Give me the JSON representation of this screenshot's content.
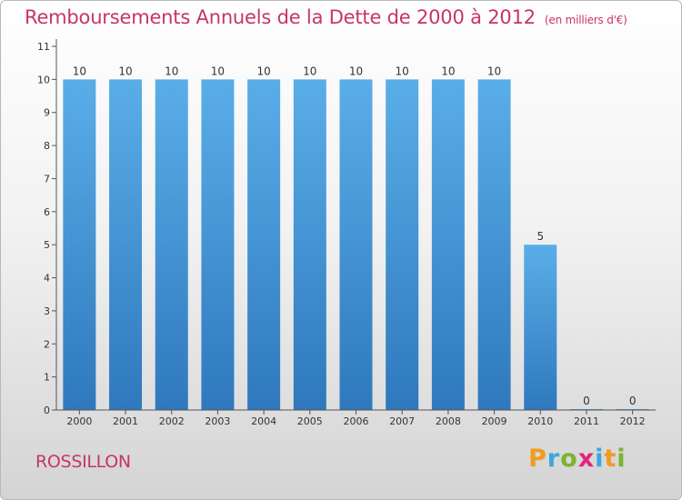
{
  "header": {
    "title": "Remboursements Annuels de la Dette de 2000 à 2012",
    "unit": "(en milliers d'€)"
  },
  "footer": {
    "commune": "ROSSILLON",
    "logo": {
      "letters": [
        "P",
        "r",
        "o",
        "x",
        "i",
        "t",
        "i"
      ]
    }
  },
  "colors": {
    "title": "#c8336d",
    "bar_top": "#5aaee8",
    "bar_bottom": "#2f78bd",
    "logo": [
      "#f29b1f",
      "#3aa7dd",
      "#7ab52e",
      "#e2257a",
      "#3aa7dd",
      "#f29b1f",
      "#7ab52e"
    ]
  },
  "chart_data": {
    "type": "bar",
    "title": "Remboursements Annuels de la Dette de 2000 à 2012",
    "subtitle": "(en milliers d'€)",
    "xlabel": "",
    "ylabel": "",
    "categories": [
      "2000",
      "2001",
      "2002",
      "2003",
      "2004",
      "2005",
      "2006",
      "2007",
      "2008",
      "2009",
      "2010",
      "2011",
      "2012"
    ],
    "values": [
      10,
      10,
      10,
      10,
      10,
      10,
      10,
      10,
      10,
      10,
      5,
      0,
      0
    ],
    "data_labels": [
      "10",
      "10",
      "10",
      "10",
      "10",
      "10",
      "10",
      "10",
      "10",
      "10",
      "5",
      "0",
      "0"
    ],
    "y_ticks": [
      0,
      1,
      2,
      3,
      4,
      5,
      6,
      7,
      8,
      9,
      10,
      11
    ],
    "ylim": [
      0,
      11
    ],
    "grid": false,
    "legend": "none"
  }
}
